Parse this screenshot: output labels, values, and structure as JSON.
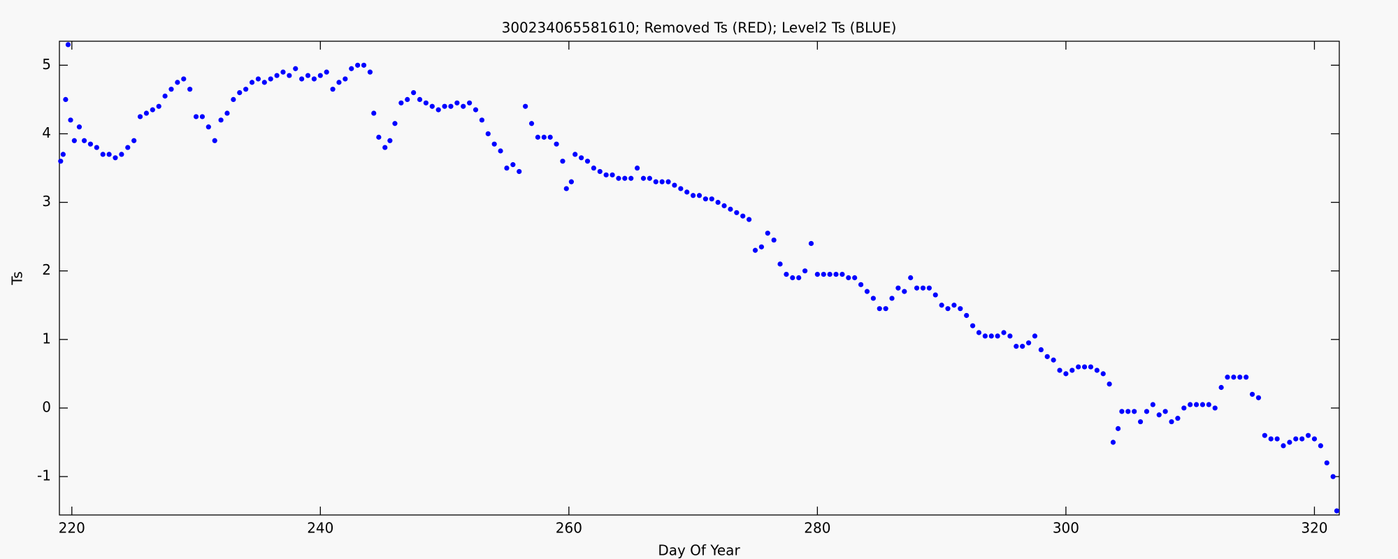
{
  "chart_data": {
    "type": "scatter",
    "title": "300234065581610; Removed Ts (RED); Level2 Ts (BLUE)",
    "x_label": "Day Of Year",
    "y_label": "Ts",
    "xlim": [
      219,
      322
    ],
    "ylim": [
      -1.56,
      5.35
    ],
    "xticks": [
      220,
      240,
      260,
      280,
      300,
      320
    ],
    "yticks": [
      -1,
      0,
      1,
      2,
      3,
      4,
      5
    ],
    "series": [
      {
        "color": "#0000ff",
        "x": [
          219.1,
          219.3,
          219.5,
          219.7,
          219.9,
          220.2,
          220.6,
          221,
          221.5,
          222,
          222.5,
          223,
          223.5,
          224,
          224.5,
          225,
          225.5,
          226,
          226.5,
          227,
          227.5,
          228,
          228.5,
          229,
          229.5,
          230,
          230.5,
          231,
          231.5,
          232,
          232.5,
          233,
          233.5,
          234,
          234.5,
          235,
          235.5,
          236,
          236.5,
          237,
          237.5,
          238,
          238.5,
          239,
          239.5,
          240,
          240.5,
          241,
          241.5,
          242,
          242.5,
          243,
          243.5,
          244,
          244.3,
          244.7,
          245.2,
          245.6,
          246,
          246.5,
          247,
          247.5,
          248,
          248.5,
          249,
          249.5,
          250,
          250.5,
          251,
          251.5,
          252,
          252.5,
          253,
          253.5,
          254,
          254.5,
          255,
          255.5,
          256,
          256.5,
          257,
          257.5,
          258,
          258.5,
          259,
          259.5,
          259.8,
          260.2,
          260.5,
          261,
          261.5,
          262,
          262.5,
          263,
          263.5,
          264,
          264.5,
          265,
          265.5,
          266,
          266.5,
          267,
          267.5,
          268,
          268.5,
          269,
          269.5,
          270,
          270.5,
          271,
          271.5,
          272,
          272.5,
          273,
          273.5,
          274,
          274.5,
          275,
          275.5,
          276,
          276.5,
          277,
          277.5,
          278,
          278.5,
          279,
          279.5,
          280,
          280.5,
          281,
          281.5,
          282,
          282.5,
          283,
          283.5,
          284,
          284.5,
          285,
          285.5,
          286,
          286.5,
          287,
          287.5,
          288,
          288.5,
          289,
          289.5,
          290,
          290.5,
          291,
          291.5,
          292,
          292.5,
          293,
          293.5,
          294,
          294.5,
          295,
          295.5,
          296,
          296.5,
          297,
          297.5,
          298,
          298.5,
          299,
          299.5,
          300,
          300.5,
          301,
          301.5,
          302,
          302.5,
          303,
          303.5,
          303.8,
          304.2,
          304.5,
          305,
          305.5,
          306,
          306.5,
          307,
          307.5,
          308,
          308.5,
          309,
          309.5,
          310,
          310.5,
          311,
          311.5,
          312,
          312.5,
          313,
          313.5,
          314,
          314.5,
          315,
          315.5,
          316,
          316.5,
          317,
          317.5,
          318,
          318.5,
          319,
          319.5,
          320,
          320.5,
          321,
          321.5,
          321.8
        ],
        "values": [
          3.6,
          3.7,
          4.5,
          5.3,
          4.2,
          3.9,
          4.1,
          3.9,
          3.85,
          3.8,
          3.7,
          3.7,
          3.65,
          3.7,
          3.8,
          3.9,
          4.25,
          4.3,
          4.35,
          4.4,
          4.55,
          4.65,
          4.75,
          4.8,
          4.65,
          4.25,
          4.25,
          4.1,
          3.9,
          4.2,
          4.3,
          4.5,
          4.6,
          4.65,
          4.75,
          4.8,
          4.75,
          4.8,
          4.85,
          4.9,
          4.85,
          4.95,
          4.8,
          4.85,
          4.8,
          4.85,
          4.9,
          4.65,
          4.75,
          4.8,
          4.95,
          5.0,
          5.0,
          4.9,
          4.3,
          3.95,
          3.8,
          3.9,
          4.15,
          4.45,
          4.5,
          4.6,
          4.5,
          4.45,
          4.4,
          4.35,
          4.4,
          4.4,
          4.45,
          4.4,
          4.45,
          4.35,
          4.2,
          4.0,
          3.85,
          3.75,
          3.5,
          3.55,
          3.45,
          4.4,
          4.15,
          3.95,
          3.95,
          3.95,
          3.85,
          3.6,
          3.2,
          3.3,
          3.7,
          3.65,
          3.6,
          3.5,
          3.45,
          3.4,
          3.4,
          3.35,
          3.35,
          3.35,
          3.5,
          3.35,
          3.35,
          3.3,
          3.3,
          3.3,
          3.25,
          3.2,
          3.15,
          3.1,
          3.1,
          3.05,
          3.05,
          3.0,
          2.95,
          2.9,
          2.85,
          2.8,
          2.75,
          2.3,
          2.35,
          2.55,
          2.45,
          2.1,
          1.95,
          1.9,
          1.9,
          2.0,
          2.4,
          1.95,
          1.95,
          1.95,
          1.95,
          1.95,
          1.9,
          1.9,
          1.8,
          1.7,
          1.6,
          1.45,
          1.45,
          1.6,
          1.75,
          1.7,
          1.9,
          1.75,
          1.75,
          1.75,
          1.65,
          1.5,
          1.45,
          1.5,
          1.45,
          1.35,
          1.2,
          1.1,
          1.05,
          1.05,
          1.05,
          1.1,
          1.05,
          0.9,
          0.9,
          0.95,
          1.05,
          0.85,
          0.75,
          0.7,
          0.55,
          0.5,
          0.55,
          0.6,
          0.6,
          0.6,
          0.55,
          0.5,
          0.35,
          -0.5,
          -0.3,
          -0.05,
          -0.05,
          -0.05,
          -0.2,
          -0.05,
          0.05,
          -0.1,
          -0.05,
          -0.2,
          -0.15,
          0.0,
          0.05,
          0.05,
          0.05,
          0.05,
          0.0,
          0.3,
          0.45,
          0.45,
          0.45,
          0.45,
          0.2,
          0.15,
          -0.4,
          -0.45,
          -0.45,
          -0.55,
          -0.5,
          -0.45,
          -0.45,
          -0.4,
          -0.45,
          -0.55,
          -0.8,
          -1.0,
          -1.5
        ]
      }
    ]
  }
}
